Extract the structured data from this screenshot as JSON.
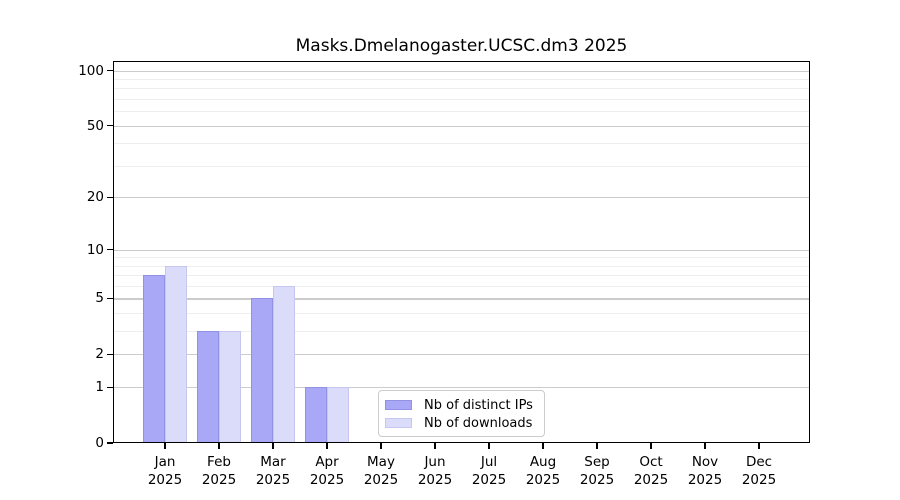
{
  "title": "Masks.Dmelanogaster.UCSC.dm3 2025",
  "colors": {
    "distinct_ips_fill": "#a8a8f6",
    "distinct_ips_edge": "#9292e4",
    "downloads_fill": "#dbdbfa",
    "downloads_edge": "#c6c6f0",
    "major_grid": "#cccccc",
    "minor_grid": "#eeeeee",
    "frame": "#000000"
  },
  "chart_data": {
    "type": "bar",
    "title": "Masks.Dmelanogaster.UCSC.dm3 2025",
    "categories": [
      "Jan",
      "Feb",
      "Mar",
      "Apr",
      "May",
      "Jun",
      "Jul",
      "Aug",
      "Sep",
      "Oct",
      "Nov",
      "Dec"
    ],
    "year_label": "2025",
    "series": [
      {
        "name": "Nb of distinct IPs",
        "color": "#a8a8f6",
        "edge": "#9292e4",
        "values": [
          7,
          3,
          5,
          1,
          0,
          0,
          0,
          0,
          0,
          0,
          0,
          0
        ]
      },
      {
        "name": "Nb of downloads",
        "color": "#dbdbfa",
        "edge": "#c6c6f0",
        "values": [
          8,
          3,
          6,
          1,
          0,
          0,
          0,
          0,
          0,
          0,
          0,
          0
        ]
      }
    ],
    "xlabel": "",
    "ylabel": "",
    "yscale": "log1p",
    "yticks": [
      0,
      1,
      2,
      5,
      10,
      20,
      50,
      100
    ],
    "ytick_labels": [
      "0",
      "1",
      "2",
      "5",
      "10",
      "20",
      "50",
      "100"
    ],
    "minor_yticks": [
      3,
      4,
      6,
      7,
      8,
      9,
      30,
      40,
      60,
      70,
      80,
      90
    ],
    "ylim": [
      0,
      113
    ],
    "grid": true,
    "legend_position": "lower-center"
  },
  "legend": {
    "items": [
      {
        "label": "Nb of distinct IPs"
      },
      {
        "label": "Nb of downloads"
      }
    ]
  }
}
